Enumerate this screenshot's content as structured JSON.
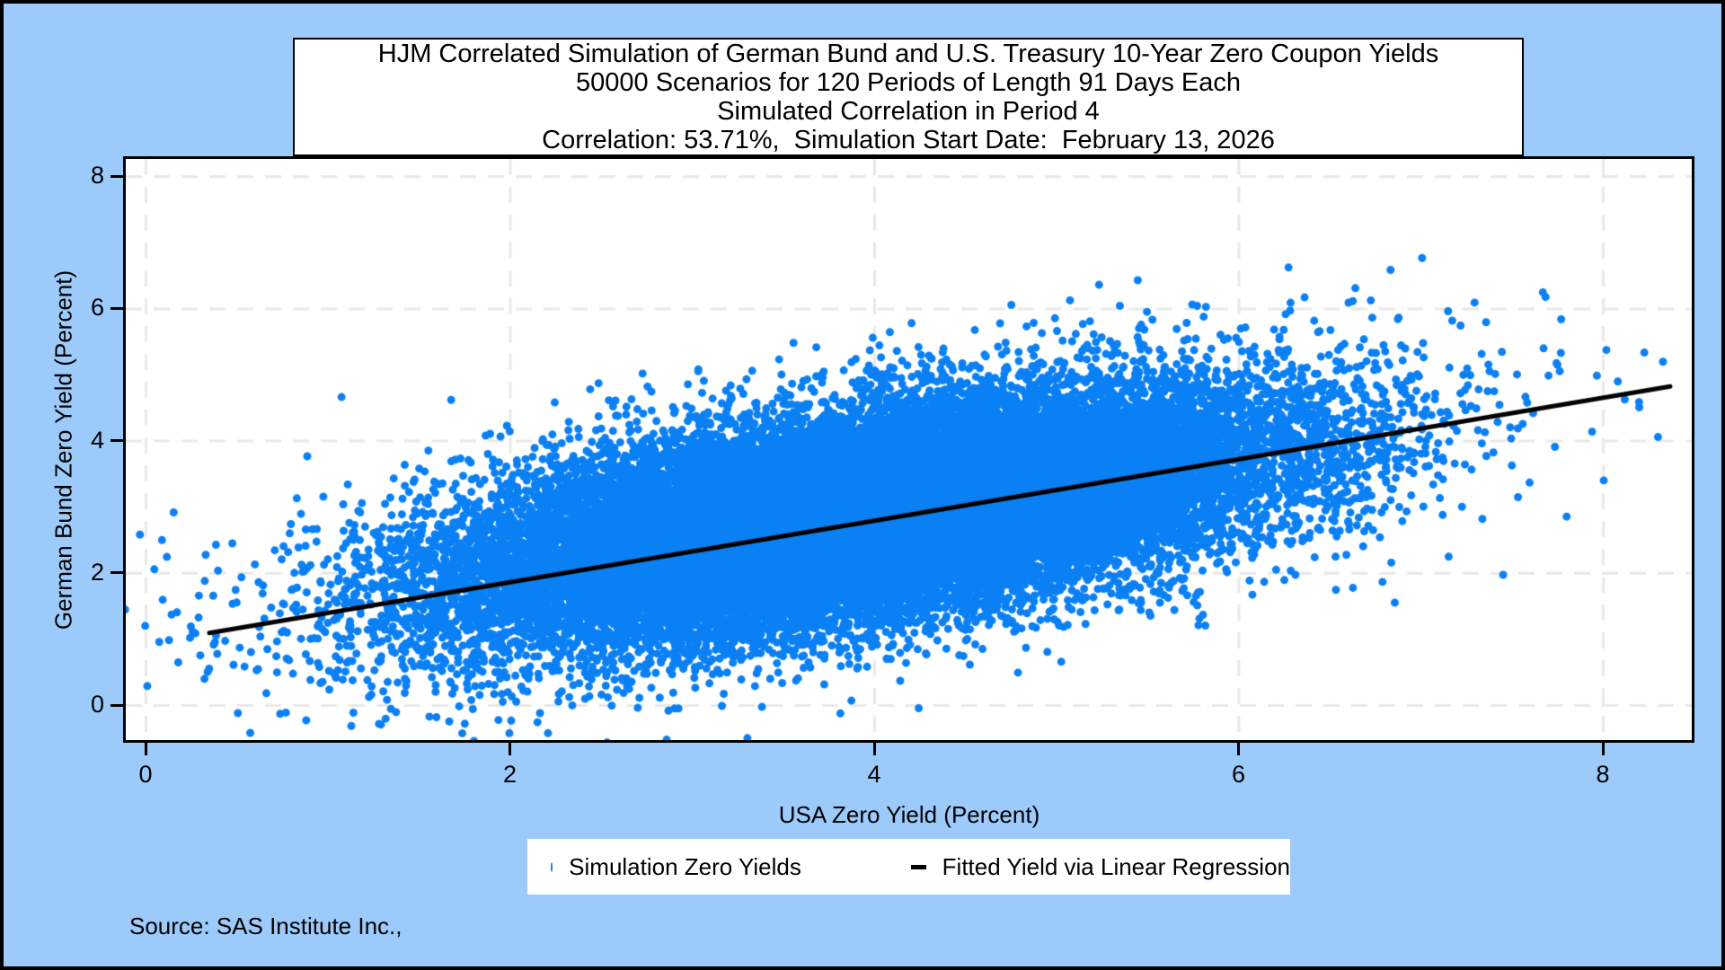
{
  "page": {
    "background_color": "#9CCAFA",
    "border_color": "#000000"
  },
  "chart_data": {
    "type": "scatter",
    "title_lines": [
      "HJM Correlated Simulation of German Bund and U.S. Treasury 10-Year Zero Coupon Yields",
      "50000 Scenarios for 120 Periods of Length 91 Days Each",
      "Simulated Correlation in Period 4",
      "Correlation: 53.71%,  Simulation Start Date:  February 13, 2026"
    ],
    "xlabel": "USA Zero Yield (Percent)",
    "ylabel": "German Bund Zero Yield (Percent)",
    "xticks": [
      0,
      2,
      4,
      6,
      8
    ],
    "yticks": [
      0,
      2,
      4,
      6,
      8
    ],
    "xlim": [
      -0.12,
      8.49
    ],
    "ylim": [
      -0.53,
      8.26
    ],
    "grid": "dashed",
    "grid_color": "#E8E8E8",
    "scatter": {
      "n_scenarios": 50000,
      "n_rendered": 30000,
      "mean_x": 3.95,
      "sd_x": 1.15,
      "mean_y": 2.88,
      "sd_y": 0.93,
      "correlation": 0.5371,
      "seed": 20260213,
      "marker_color": "#0B80F5",
      "marker_radius": 4.5
    },
    "fit_line": {
      "x1": 0.35,
      "y1": 1.09,
      "x2": 8.37,
      "y2": 4.82,
      "color": "#000000",
      "width": 5
    },
    "legend": [
      {
        "label": "Simulation Zero Yields",
        "marker": "dot"
      },
      {
        "label": "Fitted Yield via Linear Regression",
        "marker": "line"
      }
    ]
  },
  "footer": {
    "source": "Source: SAS Institute Inc.,"
  }
}
